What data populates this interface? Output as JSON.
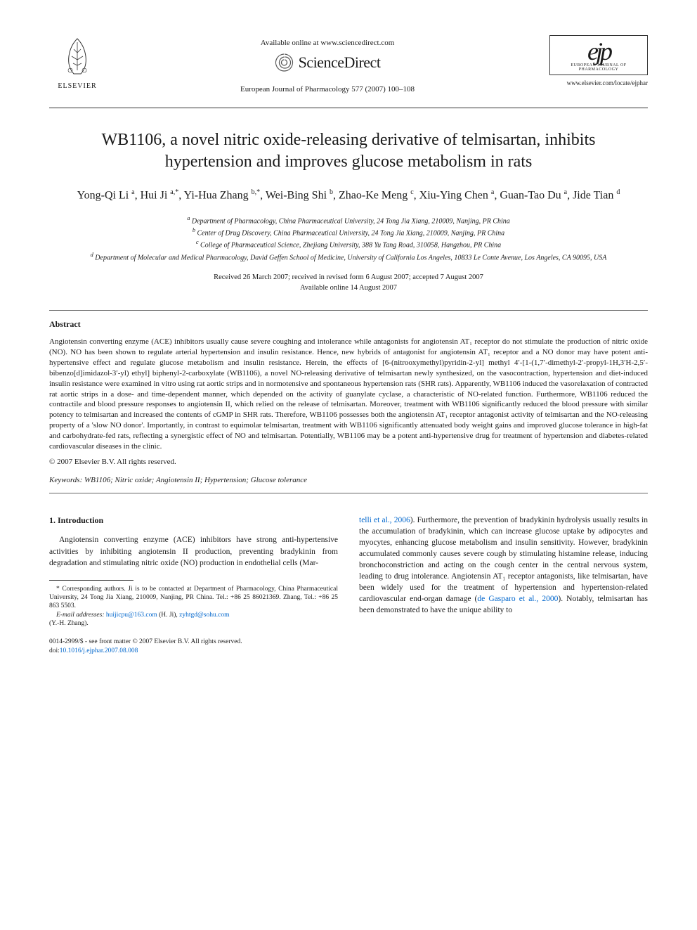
{
  "header": {
    "elsevier_label": "ELSEVIER",
    "available_online": "Available online at www.sciencedirect.com",
    "sciencedirect": "ScienceDirect",
    "journal_ref": "European Journal of Pharmacology 577 (2007) 100–108",
    "ejp_letters": "ejp",
    "ejp_subtitle": "EUROPEAN JOURNAL OF PHARMACOLOGY",
    "ejp_url": "www.elsevier.com/locate/ejphar"
  },
  "title": "WB1106, a novel nitric oxide-releasing derivative of telmisartan, inhibits hypertension and improves glucose metabolism in rats",
  "authors_html": "Yong-Qi Li <sup>a</sup>, Hui Ji <sup>a,*</sup>, Yi-Hua Zhang <sup>b,*</sup>, Wei-Bing Shi <sup>b</sup>, Zhao-Ke Meng <sup>c</sup>, Xiu-Ying Chen <sup>a</sup>, Guan-Tao Du <sup>a</sup>, Jide Tian <sup>d</sup>",
  "affiliations": {
    "a": "Department of Pharmacology, China Pharmaceutical University, 24 Tong Jia Xiang, 210009, Nanjing, PR China",
    "b": "Center of Drug Discovery, China Pharmaceutical University, 24 Tong Jia Xiang, 210009, Nanjing, PR China",
    "c": "College of Pharmaceutical Science, Zhejiang University, 388 Yu Tang Road, 310058, Hangzhou, PR China",
    "d": "Department of Molecular and Medical Pharmacology, David Geffen School of Medicine, University of California Los Angeles, 10833 Le Conte Avenue, Los Angeles, CA 90095, USA"
  },
  "dates": {
    "received": "Received 26 March 2007; received in revised form 6 August 2007; accepted 7 August 2007",
    "online": "Available online 14 August 2007"
  },
  "abstract": {
    "heading": "Abstract",
    "body": "Angiotensin converting enzyme (ACE) inhibitors usually cause severe coughing and intolerance while antagonists for angiotensin AT₁ receptor do not stimulate the production of nitric oxide (NO). NO has been shown to regulate arterial hypertension and insulin resistance. Hence, new hybrids of antagonist for angiotensin AT₁ receptor and a NO donor may have potent anti-hypertensive effect and regulate glucose metabolism and insulin resistance. Herein, the effects of [6-(nitrooxymethyl)pyridin-2-yl] methyl 4′-[1-(1,7′-dimethyl-2′-propyl-1H,3′H-2,5′-bibenzo[d]imidazol-3′-yl) ethyl] biphenyl-2-carboxylate (WB1106), a novel NO-releasing derivative of telmisartan newly synthesized, on the vasocontraction, hypertension and diet-induced insulin resistance were examined in vitro using rat aortic strips and in normotensive and spontaneous hypertension rats (SHR rats). Apparently, WB1106 induced the vasorelaxation of contracted rat aortic strips in a dose- and time-dependent manner, which depended on the activity of guanylate cyclase, a characteristic of NO-related function. Furthermore, WB1106 reduced the contractile and blood pressure responses to angiotensin II, which relied on the release of telmisartan. Moreover, treatment with WB1106 significantly reduced the blood pressure with similar potency to telmisartan and increased the contents of cGMP in SHR rats. Therefore, WB1106 possesses both the angiotensin AT₁ receptor antagonist activity of telmisartan and the NO-releasing property of a 'slow NO donor'. Importantly, in contrast to equimolar telmisartan, treatment with WB1106 significantly attenuated body weight gains and improved glucose tolerance in high-fat and carbohydrate-fed rats, reflecting a synergistic effect of NO and telmisartan. Potentially, WB1106 may be a potent anti-hypertensive drug for treatment of hypertension and diabetes-related cardiovascular diseases in the clinic.",
    "copyright": "© 2007 Elsevier B.V. All rights reserved."
  },
  "keywords": {
    "label": "Keywords:",
    "text": "WB1106; Nitric oxide; Angiotensin II; Hypertension; Glucose tolerance"
  },
  "section1": {
    "heading": "1. Introduction",
    "col1": "Angiotensin converting enzyme (ACE) inhibitors have strong anti-hypertensive activities by inhibiting angiotensin II production, preventing bradykinin from degradation and stimulating nitric oxide (NO) production in endothelial cells (Mar-",
    "col2": "telli et al., 2006). Furthermore, the prevention of bradykinin hydrolysis usually results in the accumulation of bradykinin, which can increase glucose uptake by adipocytes and myocytes, enhancing glucose metabolism and insulin sensitivity. However, bradykinin accumulated commonly causes severe cough by stimulating histamine release, inducing bronchoconstriction and acting on the cough center in the central nervous system, leading to drug intolerance. Angiotensin AT₁ receptor antagonists, like telmisartan, have been widely used for the treatment of hypertension and hypertension-related cardiovascular end-organ damage (de Gasparo et al., 2000). Notably, telmisartan has been demonstrated to have the unique ability to"
  },
  "footnotes": {
    "corresponding": "* Corresponding authors. Ji is to be contacted at Department of Pharmacology, China Pharmaceutical University, 24 Tong Jia Xiang, 210009, Nanjing, PR China. Tel.: +86 25 86021369. Zhang, Tel.: +86 25 863 5503.",
    "email_label": "E-mail addresses:",
    "email1": "huijicpu@163.com",
    "email1_name": "(H. Ji),",
    "email2": "zyhtgd@sohu.com",
    "email2_name": "(Y.-H. Zhang)."
  },
  "doi": {
    "line1": "0014-2999/$ - see front matter © 2007 Elsevier B.V. All rights reserved.",
    "line2_prefix": "doi:",
    "line2_link": "10.1016/j.ejphar.2007.08.008"
  },
  "colors": {
    "text": "#1a1a1a",
    "link": "#0066cc",
    "rule": "#333333",
    "background": "#ffffff"
  },
  "typography": {
    "title_fontsize": 24,
    "authors_fontsize": 16,
    "body_fontsize": 11,
    "footnote_fontsize": 9.5,
    "font_family": "Georgia, Times New Roman, serif"
  }
}
